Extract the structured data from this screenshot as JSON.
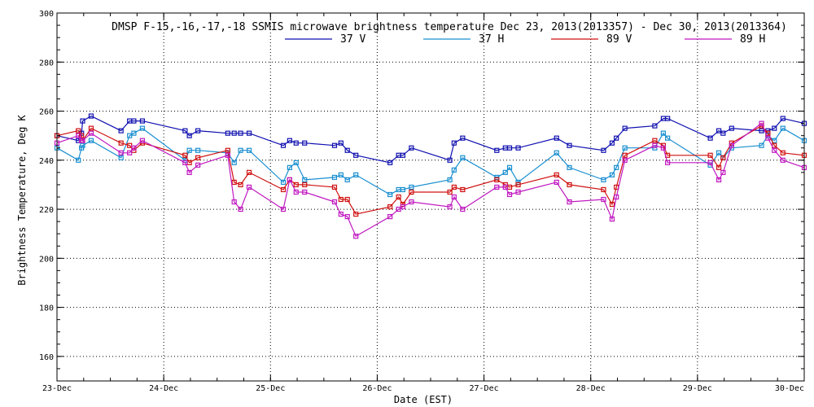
{
  "chart_data": {
    "type": "line",
    "title": "DMSP F-15,-16,-17,-18 SSMIS microwave brightness temperature Dec 23, 2013(2013357) - Dec 30, 2013(2013364)",
    "xlabel": "Date (EST)",
    "ylabel": "Brightness Temperature, Deg K",
    "xlim": [
      0,
      7
    ],
    "ylim": [
      150,
      300
    ],
    "x_ticks": [
      {
        "value": 0,
        "label": "23-Dec"
      },
      {
        "value": 1,
        "label": "24-Dec"
      },
      {
        "value": 2,
        "label": "25-Dec"
      },
      {
        "value": 3,
        "label": "26-Dec"
      },
      {
        "value": 4,
        "label": "27-Dec"
      },
      {
        "value": 5,
        "label": "28-Dec"
      },
      {
        "value": 6,
        "label": "29-Dec"
      },
      {
        "value": 7,
        "label": "30-Dec"
      }
    ],
    "y_ticks": [
      160,
      180,
      200,
      220,
      240,
      260,
      280,
      300
    ],
    "grid": true,
    "legend_position": "top-center",
    "series": [
      {
        "name": "37 V",
        "color": "#1010b0",
        "points": [
          [
            0.0,
            250
          ],
          [
            0.2,
            248
          ],
          [
            0.23,
            251
          ],
          [
            0.24,
            256
          ],
          [
            0.32,
            258
          ],
          [
            0.6,
            252
          ],
          [
            0.68,
            256
          ],
          [
            0.72,
            256
          ],
          [
            0.8,
            256
          ],
          [
            1.2,
            252
          ],
          [
            1.24,
            250
          ],
          [
            1.32,
            252
          ],
          [
            1.6,
            251
          ],
          [
            1.66,
            251
          ],
          [
            1.72,
            251
          ],
          [
            1.8,
            251
          ],
          [
            2.12,
            246
          ],
          [
            2.18,
            248
          ],
          [
            2.24,
            247
          ],
          [
            2.32,
            247
          ],
          [
            2.6,
            246
          ],
          [
            2.66,
            247
          ],
          [
            2.72,
            244
          ],
          [
            2.8,
            242
          ],
          [
            3.12,
            239
          ],
          [
            3.2,
            242
          ],
          [
            3.24,
            242
          ],
          [
            3.32,
            245
          ],
          [
            3.68,
            240
          ],
          [
            3.72,
            247
          ],
          [
            3.8,
            249
          ],
          [
            4.12,
            244
          ],
          [
            4.2,
            245
          ],
          [
            4.24,
            245
          ],
          [
            4.32,
            245
          ],
          [
            4.68,
            249
          ],
          [
            4.8,
            246
          ],
          [
            5.12,
            244
          ],
          [
            5.2,
            247
          ],
          [
            5.24,
            249
          ],
          [
            5.32,
            253
          ],
          [
            5.6,
            254
          ],
          [
            5.68,
            257
          ],
          [
            5.72,
            257
          ],
          [
            6.12,
            249
          ],
          [
            6.2,
            252
          ],
          [
            6.24,
            251
          ],
          [
            6.32,
            253
          ],
          [
            6.6,
            252
          ],
          [
            6.66,
            252
          ],
          [
            6.72,
            253
          ],
          [
            6.8,
            257
          ],
          [
            7.0,
            255
          ]
        ]
      },
      {
        "name": "37 H",
        "color": "#1a8fd0",
        "points": [
          [
            0.0,
            245
          ],
          [
            0.2,
            240
          ],
          [
            0.23,
            245
          ],
          [
            0.24,
            246
          ],
          [
            0.32,
            248
          ],
          [
            0.6,
            241
          ],
          [
            0.68,
            250
          ],
          [
            0.72,
            251
          ],
          [
            0.8,
            253
          ],
          [
            1.2,
            240
          ],
          [
            1.24,
            244
          ],
          [
            1.32,
            244
          ],
          [
            1.6,
            243
          ],
          [
            1.66,
            239
          ],
          [
            1.72,
            244
          ],
          [
            1.8,
            244
          ],
          [
            2.12,
            231
          ],
          [
            2.18,
            237
          ],
          [
            2.24,
            239
          ],
          [
            2.32,
            232
          ],
          [
            2.6,
            233
          ],
          [
            2.66,
            234
          ],
          [
            2.72,
            232
          ],
          [
            2.8,
            234
          ],
          [
            3.12,
            226
          ],
          [
            3.2,
            228
          ],
          [
            3.24,
            228
          ],
          [
            3.32,
            229
          ],
          [
            3.68,
            232
          ],
          [
            3.72,
            236
          ],
          [
            3.8,
            241
          ],
          [
            4.12,
            233
          ],
          [
            4.2,
            235
          ],
          [
            4.24,
            237
          ],
          [
            4.32,
            231
          ],
          [
            4.68,
            243
          ],
          [
            4.8,
            237
          ],
          [
            5.12,
            232
          ],
          [
            5.2,
            234
          ],
          [
            5.24,
            237
          ],
          [
            5.32,
            245
          ],
          [
            5.6,
            245
          ],
          [
            5.68,
            251
          ],
          [
            5.72,
            249
          ],
          [
            6.12,
            238
          ],
          [
            6.2,
            243
          ],
          [
            6.24,
            241
          ],
          [
            6.32,
            245
          ],
          [
            6.6,
            246
          ],
          [
            6.66,
            250
          ],
          [
            6.72,
            248
          ],
          [
            6.8,
            253
          ],
          [
            7.0,
            248
          ]
        ]
      },
      {
        "name": "89 V",
        "color": "#d01010",
        "points": [
          [
            0.0,
            250
          ],
          [
            0.2,
            252
          ],
          [
            0.23,
            250
          ],
          [
            0.24,
            248
          ],
          [
            0.32,
            253
          ],
          [
            0.6,
            247
          ],
          [
            0.68,
            246
          ],
          [
            0.72,
            244
          ],
          [
            0.8,
            247
          ],
          [
            1.2,
            242
          ],
          [
            1.24,
            239
          ],
          [
            1.32,
            241
          ],
          [
            1.6,
            244
          ],
          [
            1.66,
            231
          ],
          [
            1.72,
            230
          ],
          [
            1.8,
            235
          ],
          [
            2.12,
            228
          ],
          [
            2.18,
            232
          ],
          [
            2.24,
            230
          ],
          [
            2.32,
            230
          ],
          [
            2.6,
            229
          ],
          [
            2.66,
            224
          ],
          [
            2.72,
            224
          ],
          [
            2.8,
            218
          ],
          [
            3.12,
            221
          ],
          [
            3.2,
            225
          ],
          [
            3.24,
            222
          ],
          [
            3.32,
            227
          ],
          [
            3.68,
            227
          ],
          [
            3.72,
            229
          ],
          [
            3.8,
            228
          ],
          [
            4.12,
            232
          ],
          [
            4.2,
            230
          ],
          [
            4.24,
            229
          ],
          [
            4.32,
            230
          ],
          [
            4.68,
            234
          ],
          [
            4.8,
            230
          ],
          [
            5.12,
            228
          ],
          [
            5.2,
            222
          ],
          [
            5.24,
            229
          ],
          [
            5.32,
            242
          ],
          [
            5.6,
            248
          ],
          [
            5.68,
            246
          ],
          [
            5.72,
            242
          ],
          [
            6.12,
            242
          ],
          [
            6.2,
            237
          ],
          [
            6.24,
            241
          ],
          [
            6.32,
            247
          ],
          [
            6.6,
            254
          ],
          [
            6.66,
            251
          ],
          [
            6.72,
            246
          ],
          [
            6.8,
            243
          ],
          [
            7.0,
            242
          ]
        ]
      },
      {
        "name": "89 H",
        "color": "#c018c0",
        "points": [
          [
            0.0,
            247
          ],
          [
            0.2,
            250
          ],
          [
            0.23,
            248
          ],
          [
            0.24,
            248
          ],
          [
            0.32,
            251
          ],
          [
            0.6,
            243
          ],
          [
            0.68,
            243
          ],
          [
            0.72,
            245
          ],
          [
            0.8,
            248
          ],
          [
            1.2,
            239
          ],
          [
            1.24,
            235
          ],
          [
            1.32,
            238
          ],
          [
            1.6,
            242
          ],
          [
            1.66,
            223
          ],
          [
            1.72,
            220
          ],
          [
            1.8,
            229
          ],
          [
            2.12,
            220
          ],
          [
            2.18,
            232
          ],
          [
            2.24,
            227
          ],
          [
            2.32,
            227
          ],
          [
            2.6,
            223
          ],
          [
            2.66,
            218
          ],
          [
            2.72,
            217
          ],
          [
            2.8,
            209
          ],
          [
            3.12,
            217
          ],
          [
            3.2,
            220
          ],
          [
            3.24,
            221
          ],
          [
            3.32,
            223
          ],
          [
            3.68,
            221
          ],
          [
            3.72,
            225
          ],
          [
            3.8,
            220
          ],
          [
            4.12,
            229
          ],
          [
            4.2,
            229
          ],
          [
            4.24,
            226
          ],
          [
            4.32,
            227
          ],
          [
            4.68,
            231
          ],
          [
            4.8,
            223
          ],
          [
            5.12,
            224
          ],
          [
            5.2,
            216
          ],
          [
            5.24,
            225
          ],
          [
            5.32,
            240
          ],
          [
            5.6,
            246
          ],
          [
            5.68,
            245
          ],
          [
            5.72,
            239
          ],
          [
            6.12,
            239
          ],
          [
            6.2,
            232
          ],
          [
            6.24,
            235
          ],
          [
            6.32,
            246
          ],
          [
            6.6,
            255
          ],
          [
            6.66,
            249
          ],
          [
            6.72,
            244
          ],
          [
            6.8,
            240
          ],
          [
            7.0,
            237
          ]
        ]
      }
    ]
  }
}
